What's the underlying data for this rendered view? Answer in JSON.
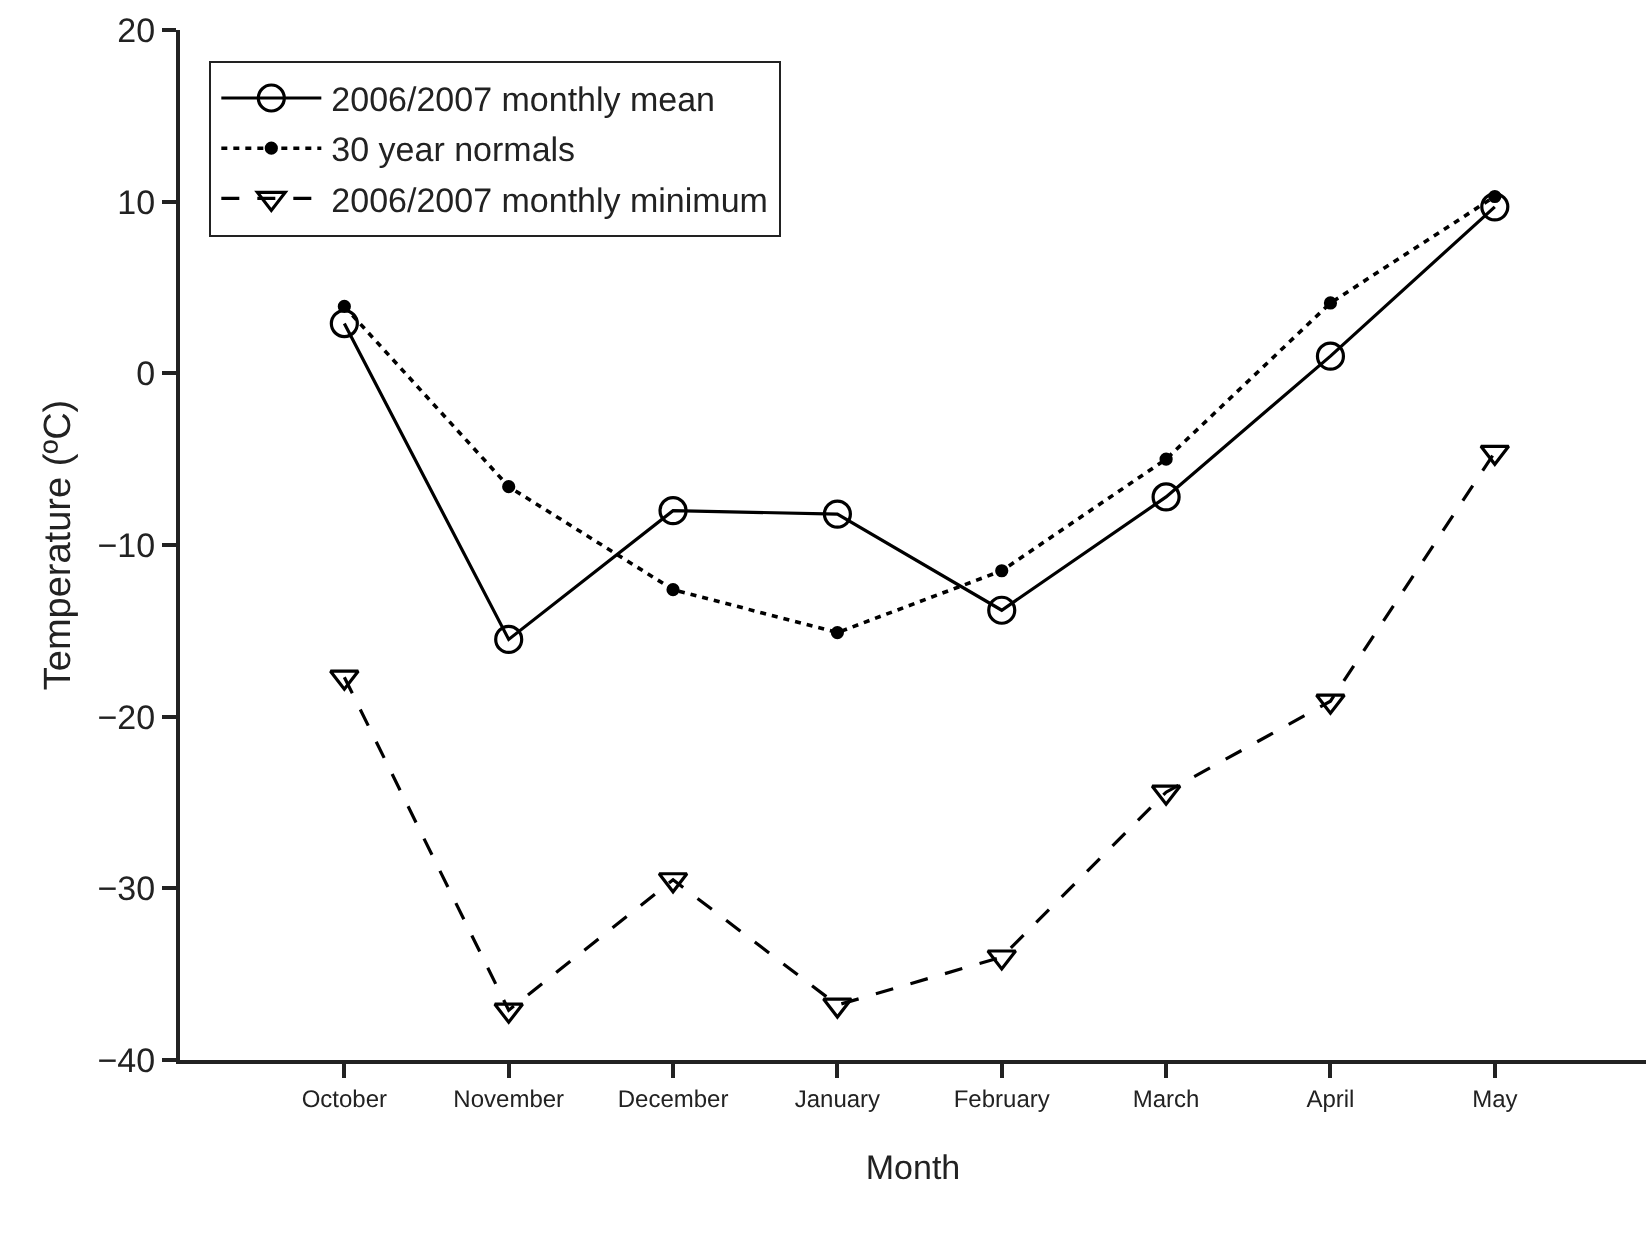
{
  "chart_data": {
    "type": "line",
    "xlabel": "Month",
    "ylabel": "Temperature (ºC)",
    "categories": [
      "October",
      "November",
      "December",
      "January",
      "February",
      "March",
      "April",
      "May"
    ],
    "ylim": [
      -40,
      20
    ],
    "yticks": [
      -40,
      -30,
      -20,
      -10,
      0,
      10,
      20
    ],
    "legend": "top left",
    "series": [
      {
        "name": "2006/2007 monthly mean",
        "color": "#000000",
        "marker": "circle",
        "line_style": "solid",
        "values": [
          2.9,
          -15.5,
          -8.0,
          -8.2,
          -13.8,
          -7.2,
          1.0,
          9.7
        ]
      },
      {
        "name": "30 year normals",
        "color": "#000000",
        "marker": "dot",
        "line_style": "dotted",
        "values": [
          3.9,
          -6.6,
          -12.6,
          -15.1,
          -11.5,
          -5.0,
          4.1,
          10.3
        ]
      },
      {
        "name": "2006/2007 monthly minimum",
        "color": "#000000",
        "marker": "triangle",
        "line_style": "dashed",
        "values": [
          -17.7,
          -37.1,
          -29.5,
          -36.8,
          -34.0,
          -24.4,
          -19.1,
          -4.6
        ]
      }
    ]
  }
}
